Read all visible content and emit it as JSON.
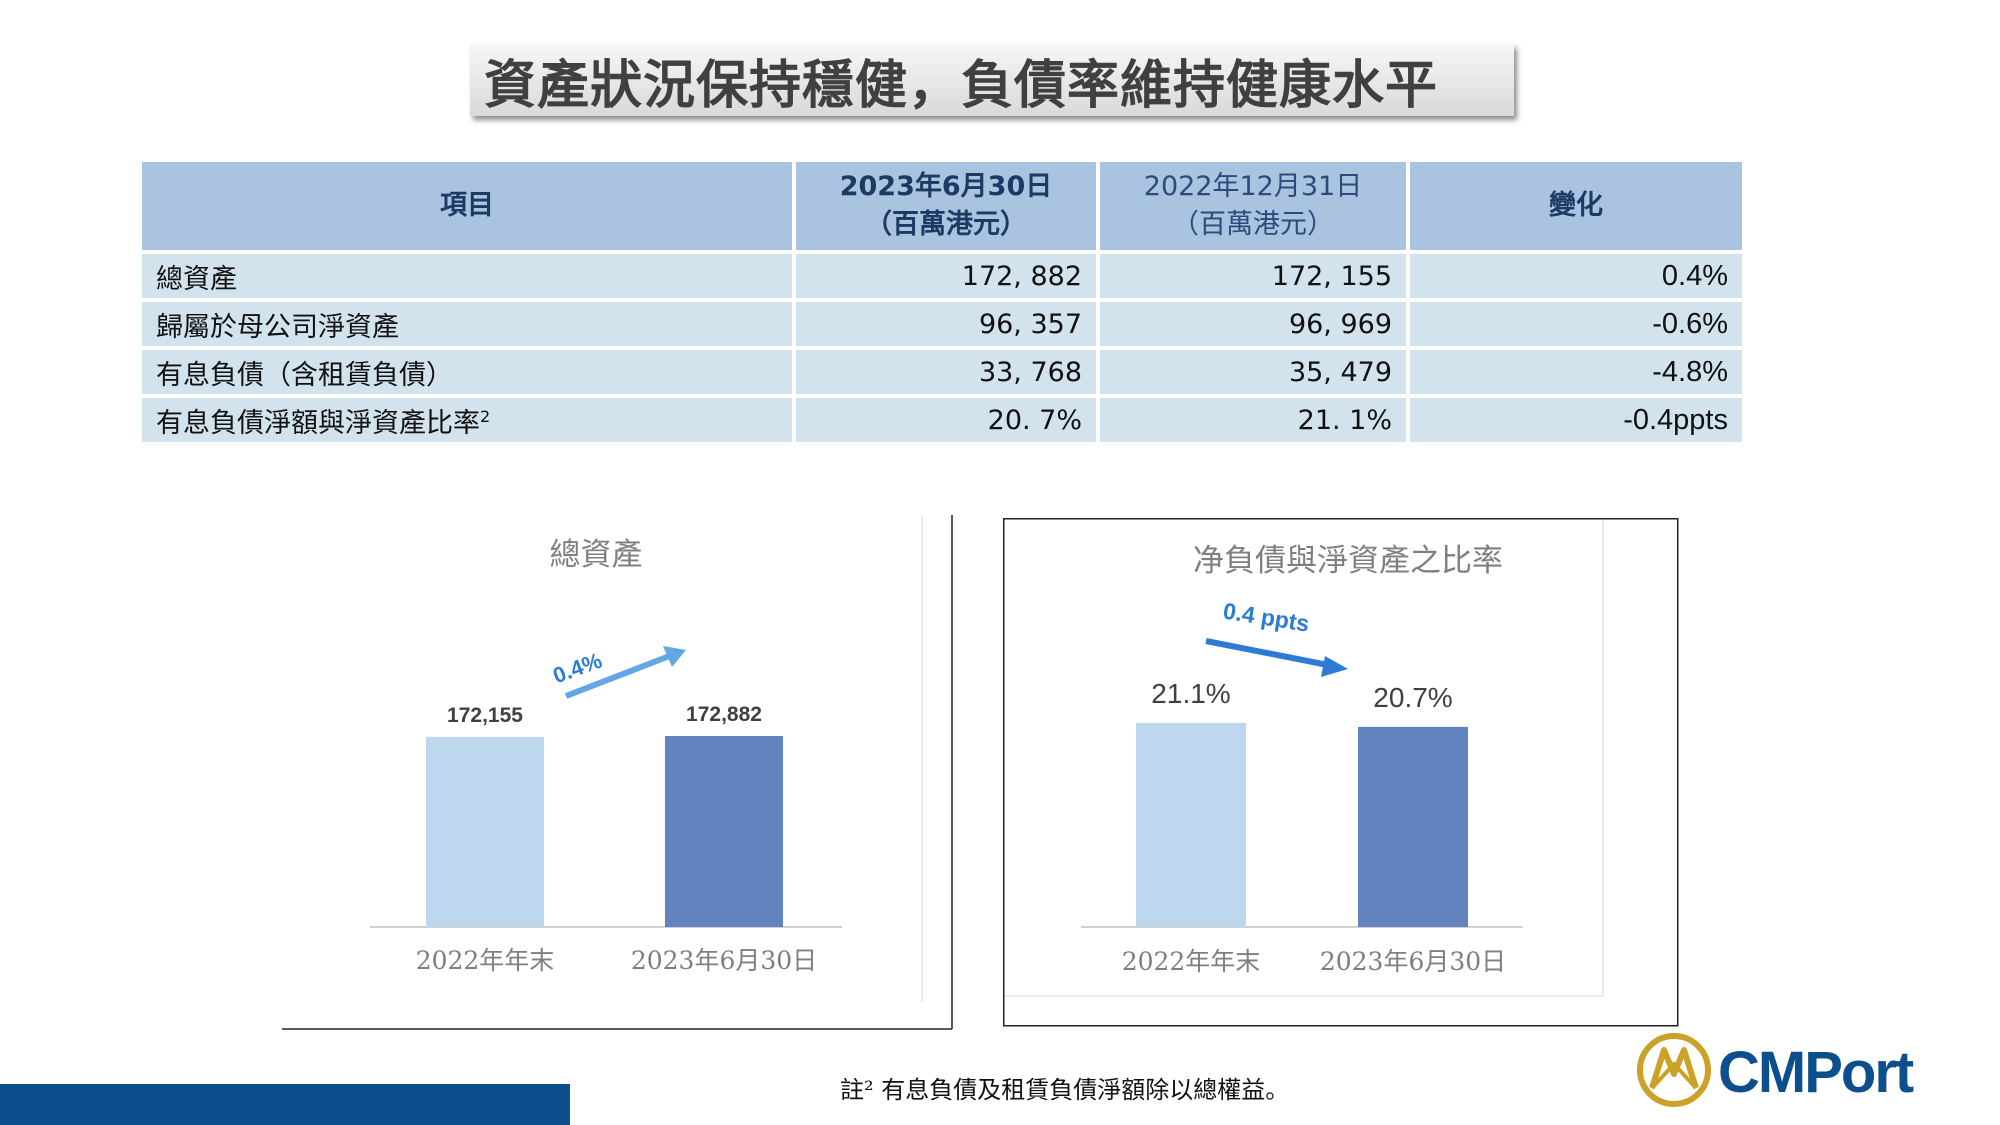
{
  "title": "資產狀況保持穩健，負債率維持健康水平",
  "table": {
    "headers": [
      {
        "line1": "項目",
        "line2": ""
      },
      {
        "line1": "2023年6月30日",
        "line2": "（百萬港元）"
      },
      {
        "line1": "2022年12月31日",
        "line2": "（百萬港元）"
      },
      {
        "line1": "變化",
        "line2": ""
      }
    ],
    "rows": [
      {
        "item": "總資產",
        "h1": "172, 882",
        "h2": "172, 155",
        "change": "0.4%"
      },
      {
        "item": "歸屬於母公司淨資產",
        "h1": "96, 357",
        "h2": "96, 969",
        "change": "-0.6%"
      },
      {
        "item": "有息負債（含租賃負債）",
        "h1": "33, 768",
        "h2": "35, 479",
        "change": "-4.8%"
      },
      {
        "item": "有息負債淨額與淨資產比率",
        "sup": "2",
        "h1": "20. 7%",
        "h2": "21. 1%",
        "change": "-0.4ppts"
      }
    ]
  },
  "chart_data": [
    {
      "type": "bar",
      "title": "總資產",
      "categories": [
        "2022年年末",
        "2023年6月30日"
      ],
      "values": [
        172155,
        172882
      ],
      "labels": [
        "172,155",
        "172,882"
      ],
      "annotation": "0.4%",
      "colors": [
        "#bdd7ee",
        "#6484bf"
      ]
    },
    {
      "type": "bar",
      "title": "净負債與淨資產之比率",
      "categories": [
        "2022年年末",
        "2023年6月30日"
      ],
      "values": [
        21.1,
        20.7
      ],
      "labels": [
        "21.1%",
        "20.7%"
      ],
      "annotation": "0.4 ppts",
      "colors": [
        "#bdd7ee",
        "#6484bf"
      ]
    }
  ],
  "footnote": "註² 有息負債及租賃負債淨額除以總權益。",
  "logo": {
    "text": "CMPort",
    "color": "#0d4f8c",
    "accent": "#c9a227"
  }
}
